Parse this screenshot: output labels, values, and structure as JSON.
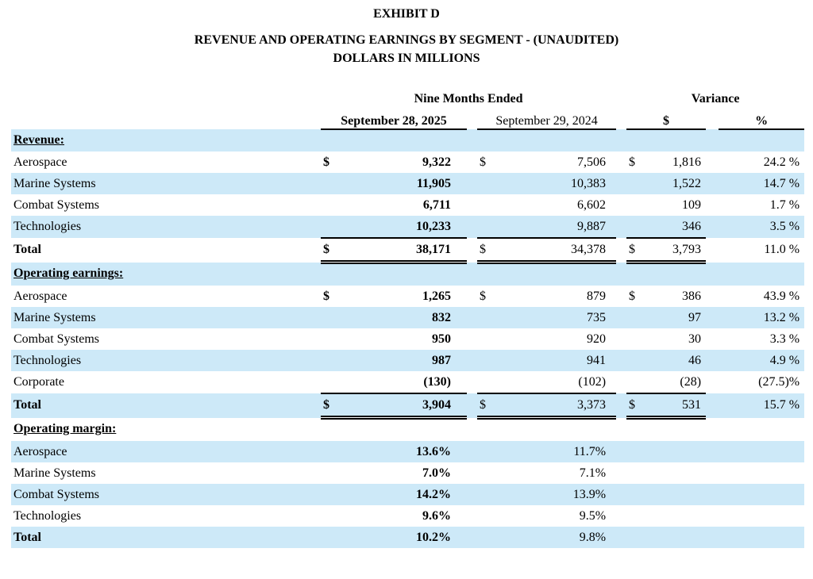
{
  "document": {
    "exhibit_title": "EXHIBIT D",
    "title": "REVENUE AND OPERATING EARNINGS BY SEGMENT - (UNAUDITED)",
    "subtitle": "DOLLARS IN MILLIONS"
  },
  "table": {
    "colors": {
      "stripe": "#cde9f8",
      "text": "#000000",
      "rule": "#000000"
    },
    "col_group_headers": {
      "nine_months": "Nine Months Ended",
      "variance": "Variance"
    },
    "col_headers": {
      "period_2025": "September 28, 2025",
      "period_2024": "September 29, 2024",
      "variance_dollar": "$",
      "variance_percent": "%"
    },
    "sections": [
      {
        "title": "Revenue:",
        "rows": [
          {
            "label": "Aerospace",
            "d1": "$",
            "v1": "9,322",
            "d2": "$",
            "v2": "7,506",
            "d3": "$",
            "v3": "1,816",
            "pct": "24.2 %"
          },
          {
            "label": "Marine Systems",
            "d1": "",
            "v1": "11,905",
            "d2": "",
            "v2": "10,383",
            "d3": "",
            "v3": "1,522",
            "pct": "14.7 %"
          },
          {
            "label": "Combat Systems",
            "d1": "",
            "v1": "6,711",
            "d2": "",
            "v2": "6,602",
            "d3": "",
            "v3": "109",
            "pct": "1.7 %"
          },
          {
            "label": "Technologies",
            "d1": "",
            "v1": "10,233",
            "d2": "",
            "v2": "9,887",
            "d3": "",
            "v3": "346",
            "pct": "3.5 %"
          },
          {
            "label": "Total",
            "total": true,
            "d1": "$",
            "v1": "38,171",
            "d2": "$",
            "v2": "34,378",
            "d3": "$",
            "v3": "3,793",
            "pct": "11.0 %"
          }
        ]
      },
      {
        "title": "Operating earnings:",
        "rows": [
          {
            "label": "Aerospace",
            "d1": "$",
            "v1": "1,265",
            "d2": "$",
            "v2": "879",
            "d3": "$",
            "v3": "386",
            "pct": "43.9 %"
          },
          {
            "label": "Marine Systems",
            "d1": "",
            "v1": "832",
            "d2": "",
            "v2": "735",
            "d3": "",
            "v3": "97",
            "pct": "13.2 %"
          },
          {
            "label": "Combat Systems",
            "d1": "",
            "v1": "950",
            "d2": "",
            "v2": "920",
            "d3": "",
            "v3": "30",
            "pct": "3.3 %"
          },
          {
            "label": "Technologies",
            "d1": "",
            "v1": "987",
            "d2": "",
            "v2": "941",
            "d3": "",
            "v3": "46",
            "pct": "4.9 %"
          },
          {
            "label": "Corporate",
            "d1": "",
            "v1": "(130)",
            "d2": "",
            "v2": "(102)",
            "d3": "",
            "v3": "(28)",
            "pct": "(27.5)%"
          },
          {
            "label": "Total",
            "total": true,
            "d1": "$",
            "v1": "3,904",
            "d2": "$",
            "v2": "3,373",
            "d3": "$",
            "v3": "531",
            "pct": "15.7 %"
          }
        ]
      },
      {
        "title": "Operating margin:",
        "rows": [
          {
            "label": "Aerospace",
            "d1": "",
            "v1": "13.6%",
            "d2": "",
            "v2": "11.7%",
            "d3": "",
            "v3": "",
            "pct": ""
          },
          {
            "label": "Marine Systems",
            "d1": "",
            "v1": "7.0%",
            "d2": "",
            "v2": "7.1%",
            "d3": "",
            "v3": "",
            "pct": ""
          },
          {
            "label": "Combat Systems",
            "d1": "",
            "v1": "14.2%",
            "d2": "",
            "v2": "13.9%",
            "d3": "",
            "v3": "",
            "pct": ""
          },
          {
            "label": "Technologies",
            "d1": "",
            "v1": "9.6%",
            "d2": "",
            "v2": "9.5%",
            "d3": "",
            "v3": "",
            "pct": ""
          },
          {
            "label": "Total",
            "total": true,
            "d1": "",
            "v1": "10.2%",
            "d2": "",
            "v2": "9.8%",
            "d3": "",
            "v3": "",
            "pct": ""
          }
        ]
      }
    ]
  }
}
